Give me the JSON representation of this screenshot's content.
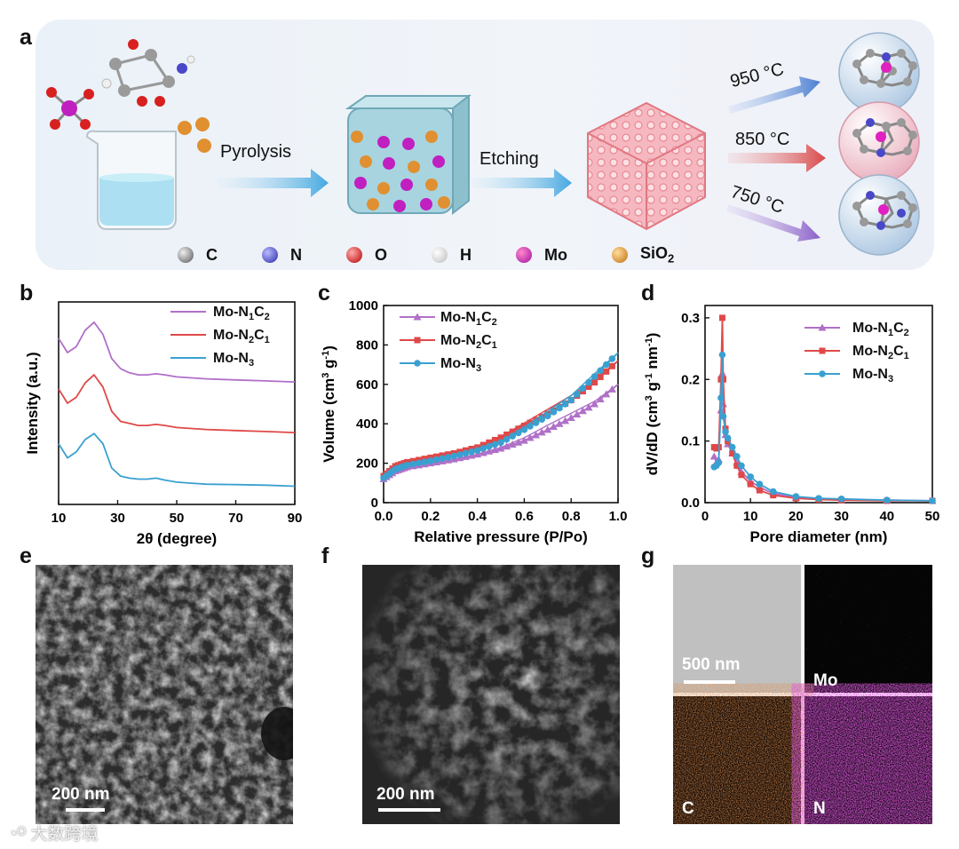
{
  "panel_labels": {
    "a": "a",
    "b": "b",
    "c": "c",
    "d": "d",
    "e": "e",
    "f": "f",
    "g": "g"
  },
  "schematic": {
    "step1": "Pyrolysis",
    "step2": "Etching",
    "temps": [
      "950 °C",
      "850 °C",
      "750 °C"
    ],
    "legend": [
      {
        "symbol": "C",
        "color": "#8a8a8a"
      },
      {
        "symbol": "N",
        "color": "#4848c8"
      },
      {
        "symbol": "O",
        "color": "#d82020"
      },
      {
        "symbol": "H",
        "color": "#e8e8e8"
      },
      {
        "symbol": "Mo",
        "color": "#c020c0"
      },
      {
        "symbol": "SiO2",
        "color": "#e09030"
      }
    ]
  },
  "chart_data": [
    {
      "type": "line",
      "panel": "b",
      "xlabel": "2θ (degree)",
      "ylabel": "Intensity (a.u.)",
      "xlim": [
        10,
        90
      ],
      "xticks": [
        10,
        30,
        50,
        70,
        90
      ],
      "series": [
        {
          "name": "Mo-N1C2",
          "label_main": "Mo-N",
          "sub1": "1",
          "mid": "C",
          "sub2": "2",
          "color": "#b070c8",
          "x": [
            10,
            13,
            16,
            19,
            22,
            25,
            28,
            31,
            34,
            37,
            40,
            43,
            46,
            50,
            55,
            60,
            70,
            80,
            90
          ],
          "y": [
            0.82,
            0.75,
            0.78,
            0.86,
            0.9,
            0.84,
            0.72,
            0.67,
            0.65,
            0.64,
            0.64,
            0.645,
            0.64,
            0.63,
            0.625,
            0.62,
            0.615,
            0.61,
            0.605
          ]
        },
        {
          "name": "Mo-N2C1",
          "label_main": "Mo-N",
          "sub1": "2",
          "mid": "C",
          "sub2": "1",
          "color": "#e04848",
          "x": [
            10,
            13,
            16,
            19,
            22,
            25,
            28,
            31,
            34,
            37,
            40,
            43,
            46,
            50,
            55,
            60,
            70,
            80,
            90
          ],
          "y": [
            0.57,
            0.5,
            0.53,
            0.6,
            0.64,
            0.58,
            0.46,
            0.41,
            0.4,
            0.39,
            0.39,
            0.395,
            0.39,
            0.38,
            0.375,
            0.37,
            0.365,
            0.36,
            0.355
          ]
        },
        {
          "name": "Mo-N3",
          "label_main": "Mo-N",
          "sub1": "3",
          "mid": "",
          "sub2": "",
          "color": "#3aa0d0",
          "x": [
            10,
            13,
            16,
            19,
            22,
            25,
            28,
            31,
            34,
            37,
            40,
            43,
            46,
            50,
            55,
            60,
            70,
            80,
            90
          ],
          "y": [
            0.3,
            0.23,
            0.26,
            0.32,
            0.35,
            0.3,
            0.18,
            0.14,
            0.13,
            0.125,
            0.125,
            0.13,
            0.12,
            0.11,
            0.105,
            0.1,
            0.098,
            0.095,
            0.09
          ]
        }
      ]
    },
    {
      "type": "line",
      "panel": "c",
      "xlabel": "Relative pressure (P/Po)",
      "ylabel": "Volume (cm3 g-1)",
      "ylabel_main": "Volume (cm",
      "ylabel_sup1": "3",
      "ylabel_mid": " g",
      "ylabel_sup2": "-1",
      "ylabel_end": ")",
      "xlim": [
        0,
        1.0
      ],
      "ylim": [
        0,
        1000
      ],
      "xticks": [
        0.0,
        0.2,
        0.4,
        0.6,
        0.8,
        1.0
      ],
      "yticks": [
        0,
        200,
        400,
        600,
        800,
        1000
      ],
      "series": [
        {
          "name": "Mo-N1C2",
          "label_main": "Mo-N",
          "sub1": "1",
          "mid": "C",
          "sub2": "2",
          "color": "#b070c8",
          "marker": "triangle",
          "x": [
            0.0,
            0.05,
            0.1,
            0.2,
            0.3,
            0.4,
            0.5,
            0.6,
            0.7,
            0.8,
            0.9,
            1.0
          ],
          "y": [
            120,
            160,
            180,
            200,
            220,
            245,
            275,
            315,
            370,
            430,
            500,
            600
          ]
        },
        {
          "name": "Mo-N2C1",
          "label_main": "Mo-N",
          "sub1": "2",
          "mid": "C",
          "sub2": "1",
          "color": "#e04848",
          "marker": "square",
          "x": [
            0.0,
            0.05,
            0.1,
            0.2,
            0.3,
            0.4,
            0.5,
            0.6,
            0.7,
            0.8,
            0.9,
            1.0
          ],
          "y": [
            135,
            185,
            205,
            228,
            250,
            280,
            330,
            390,
            450,
            520,
            610,
            720
          ]
        },
        {
          "name": "Mo-N3",
          "label_main": "Mo-N",
          "sub1": "3",
          "mid": "",
          "sub2": "",
          "color": "#3aa0d0",
          "marker": "circle",
          "x": [
            0.0,
            0.05,
            0.1,
            0.2,
            0.3,
            0.4,
            0.5,
            0.6,
            0.7,
            0.8,
            0.9,
            1.0
          ],
          "y": [
            125,
            170,
            190,
            212,
            236,
            265,
            305,
            370,
            440,
            520,
            640,
            760
          ]
        }
      ]
    },
    {
      "type": "line",
      "panel": "d",
      "xlabel": "Pore diameter (nm)",
      "ylabel": "dV/dD (cm3 g-1 nm-1)",
      "ylabel_main": "dV/dD (cm",
      "ylabel_sup1": "3",
      "ylabel_mid": " g",
      "ylabel_sup2": "-1",
      "ylabel_mid2": " nm",
      "ylabel_sup3": "-1",
      "ylabel_end": ")",
      "xlim": [
        0,
        50
      ],
      "ylim": [
        0,
        0.32
      ],
      "xticks": [
        0,
        10,
        20,
        30,
        40,
        50
      ],
      "yticks": [
        0.0,
        0.1,
        0.2,
        0.3
      ],
      "series": [
        {
          "name": "Mo-N1C2",
          "label_main": "Mo-N",
          "sub1": "1",
          "mid": "C",
          "sub2": "2",
          "color": "#b070c8",
          "marker": "triangle",
          "x": [
            2,
            2.5,
            3,
            3.5,
            3.8,
            4,
            4.5,
            5,
            6,
            7,
            8,
            10,
            12,
            15,
            20,
            25,
            30,
            40,
            50
          ],
          "y": [
            0.075,
            0.065,
            0.07,
            0.15,
            0.21,
            0.16,
            0.11,
            0.095,
            0.08,
            0.065,
            0.05,
            0.035,
            0.025,
            0.015,
            0.008,
            0.006,
            0.005,
            0.004,
            0.003
          ]
        },
        {
          "name": "Mo-N2C1",
          "label_main": "Mo-N",
          "sub1": "2",
          "mid": "C",
          "sub2": "1",
          "color": "#e04848",
          "marker": "square",
          "x": [
            2,
            2.5,
            3,
            3.5,
            3.8,
            4,
            4.5,
            5,
            6,
            7,
            8,
            10,
            12,
            15,
            20,
            25,
            30,
            40,
            50
          ],
          "y": [
            0.09,
            0.088,
            0.09,
            0.2,
            0.3,
            0.2,
            0.12,
            0.1,
            0.08,
            0.06,
            0.045,
            0.03,
            0.02,
            0.012,
            0.007,
            0.005,
            0.004,
            0.003,
            0.003
          ]
        },
        {
          "name": "Mo-N3",
          "label_main": "Mo-N",
          "sub1": "3",
          "mid": "",
          "sub2": "",
          "color": "#3aa0d0",
          "marker": "circle",
          "x": [
            2,
            2.5,
            3,
            3.5,
            3.8,
            4,
            4.5,
            5,
            6,
            7,
            8,
            10,
            12,
            15,
            20,
            25,
            30,
            40,
            50
          ],
          "y": [
            0.058,
            0.06,
            0.065,
            0.17,
            0.24,
            0.14,
            0.115,
            0.105,
            0.09,
            0.075,
            0.06,
            0.042,
            0.03,
            0.018,
            0.01,
            0.007,
            0.006,
            0.004,
            0.003
          ]
        }
      ]
    }
  ],
  "micrographs": {
    "e": {
      "scale": "200 nm"
    },
    "f": {
      "scale": "200 nm"
    },
    "g": {
      "scale": "500 nm",
      "maps": [
        "Mo",
        "C",
        "N"
      ]
    }
  },
  "watermark": "大数跨境"
}
